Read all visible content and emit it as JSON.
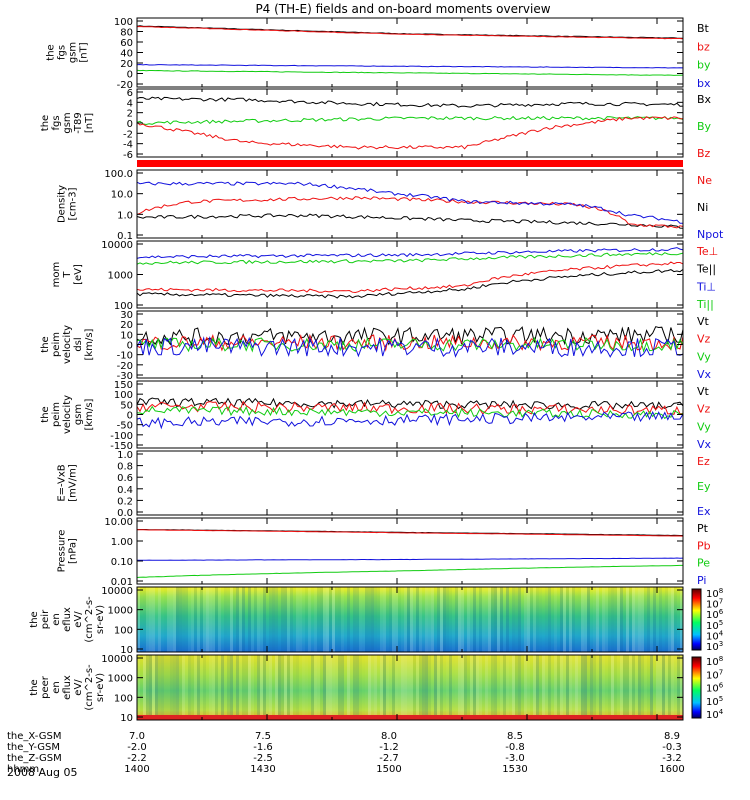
{
  "title": "P4 (TH-E) fields and on-board moments overview",
  "date_label": "2008 Aug 05",
  "x_axis": {
    "row_labels": [
      "the_X-GSM",
      "the_Y-GSM",
      "the_Z-GSM",
      "hhmm"
    ],
    "positions": [
      "7.0",
      "7.5",
      "8.0",
      "8.5",
      "8.9"
    ],
    "rows": [
      [
        "7.0",
        "7.5",
        "8.0",
        "8.5",
        "8.9"
      ],
      [
        "-2.0",
        "-1.6",
        "-1.2",
        "-0.8",
        "-0.3"
      ],
      [
        "-2.2",
        "-2.5",
        "-2.7",
        "-3.0",
        "-3.2"
      ],
      [
        "1400",
        "1430",
        "1500",
        "1530",
        "1600"
      ]
    ]
  },
  "colors": {
    "black": "#000000",
    "red": "#ee1111",
    "green": "#11cc11",
    "blue": "#1111dd"
  },
  "chart_data": [
    {
      "type": "line",
      "ylabel": [
        "the",
        "fgs",
        "gsm",
        "[nT]"
      ],
      "yticks": [
        "100",
        "80",
        "60",
        "40",
        "20",
        "0",
        "-20"
      ],
      "ylim": [
        -30,
        100
      ],
      "legend": [
        [
          "Bt",
          "#000000"
        ],
        [
          "bz",
          "#ee1111"
        ],
        [
          "by",
          "#11cc11"
        ],
        [
          "bx",
          "#1111dd"
        ]
      ],
      "series": [
        {
          "name": "Bt",
          "x": [
            0,
            0.5,
            1
          ],
          "values": [
            85,
            70,
            62
          ]
        },
        {
          "name": "bz",
          "x": [
            0,
            0.5,
            1
          ],
          "values": [
            84,
            69,
            61
          ]
        },
        {
          "name": "by",
          "x": [
            0,
            1
          ],
          "values": [
            1,
            -8
          ]
        },
        {
          "name": "bx",
          "x": [
            0,
            1
          ],
          "values": [
            12,
            6
          ]
        }
      ]
    },
    {
      "type": "line",
      "ylabel": [
        "the",
        "fgs",
        "gsm",
        "-T89",
        "[nT]"
      ],
      "yticks": [
        "6",
        "4",
        "2",
        "0",
        "-2",
        "-4",
        "-6"
      ],
      "ylim": [
        -8,
        6
      ],
      "legend": [
        [
          "Bx",
          "#000000"
        ],
        [
          "By",
          "#11cc11"
        ],
        [
          "Bz",
          "#ee1111"
        ]
      ],
      "series": [
        {
          "name": "Bx",
          "x": [
            0,
            0.2,
            0.4,
            0.6,
            0.8,
            1
          ],
          "values": [
            4,
            3.8,
            3,
            2.5,
            3,
            2.8
          ]
        },
        {
          "name": "By",
          "x": [
            0,
            0.5,
            1
          ],
          "values": [
            -1,
            0,
            0
          ]
        },
        {
          "name": "Bz",
          "x": [
            0,
            0.2,
            0.4,
            0.6,
            0.75,
            0.9,
            1
          ],
          "values": [
            -1,
            -5,
            -6,
            -6,
            -2,
            0,
            0
          ]
        }
      ]
    },
    {
      "type": "line",
      "ylabel": [
        "Density",
        "[cm-3]"
      ],
      "yticks": [
        "100.0",
        "10.0",
        "1.0",
        "0.1"
      ],
      "ylim": [
        0.1,
        100
      ],
      "log": true,
      "legend": [
        [
          "Ne",
          "#ee1111"
        ],
        [
          "Ni",
          "#000000"
        ],
        [
          "Npot",
          "#1111dd"
        ]
      ],
      "series": [
        {
          "name": "Ni",
          "x": [
            0,
            0.3,
            0.6,
            0.9,
            1
          ],
          "values": [
            0.8,
            1.0,
            0.6,
            0.4,
            0.3
          ]
        },
        {
          "name": "Ne",
          "x": [
            0,
            0.1,
            0.4,
            0.6,
            0.8,
            0.9,
            1
          ],
          "values": [
            1.2,
            4,
            6,
            4,
            3,
            0.4,
            0.3
          ]
        },
        {
          "name": "Npot",
          "x": [
            0,
            0.3,
            0.45,
            0.6,
            0.8,
            0.9,
            1
          ],
          "values": [
            25,
            25,
            10,
            4,
            3,
            1,
            0.5
          ]
        }
      ]
    },
    {
      "type": "line",
      "ylabel": [
        "mom",
        "T",
        "[eV]"
      ],
      "yticks": [
        "10000",
        "1000",
        "100"
      ],
      "ylim": [
        30,
        10000
      ],
      "log": true,
      "legend": [
        [
          "Te⊥",
          "#ee1111"
        ],
        [
          "Te||",
          "#000000"
        ],
        [
          "Ti⊥",
          "#1111dd"
        ],
        [
          "Ti||",
          "#11cc11"
        ]
      ],
      "series": [
        {
          "name": "Ti⊥",
          "x": [
            0,
            0.5,
            1
          ],
          "values": [
            2500,
            3000,
            5000
          ]
        },
        {
          "name": "Ti||",
          "x": [
            0,
            0.5,
            1
          ],
          "values": [
            1500,
            1800,
            3500
          ]
        },
        {
          "name": "Te⊥",
          "x": [
            0,
            0.4,
            0.6,
            1
          ],
          "values": [
            150,
            130,
            200,
            1500
          ]
        },
        {
          "name": "Te||",
          "x": [
            0,
            0.4,
            0.6,
            1
          ],
          "values": [
            100,
            80,
            150,
            800
          ]
        }
      ]
    },
    {
      "type": "line",
      "ylabel": [
        "the",
        "peim",
        "velocity",
        "dsl",
        "[km/s]"
      ],
      "yticks": [
        "30",
        "20",
        "10",
        "0",
        "-10",
        "-20",
        "-30"
      ],
      "ylim": [
        -35,
        35
      ],
      "legend": [
        [
          "Vt",
          "#000000"
        ],
        [
          "Vz",
          "#ee1111"
        ],
        [
          "Vy",
          "#11cc11"
        ],
        [
          "Vx",
          "#1111dd"
        ]
      ],
      "series": [
        {
          "name": "Vt",
          "x": [
            0,
            1
          ],
          "values": [
            8,
            10
          ]
        },
        {
          "name": "Vz",
          "x": [
            0,
            1
          ],
          "values": [
            2,
            2
          ]
        },
        {
          "name": "Vy",
          "x": [
            0,
            1
          ],
          "values": [
            0,
            0
          ]
        },
        {
          "name": "Vx",
          "x": [
            0,
            1
          ],
          "values": [
            -2,
            -3
          ]
        }
      ]
    },
    {
      "type": "line",
      "ylabel": [
        "the",
        "peim",
        "velocity",
        "gsm",
        "[km/s]"
      ],
      "yticks": [
        "150",
        "100",
        "50",
        "0",
        "-50",
        "-100",
        "-150"
      ],
      "ylim": [
        -160,
        160
      ],
      "legend": [
        [
          "Vt",
          "#000000"
        ],
        [
          "Vz",
          "#ee1111"
        ],
        [
          "Vy",
          "#11cc11"
        ],
        [
          "Vx",
          "#1111dd"
        ]
      ],
      "series": [
        {
          "name": "Vt",
          "x": [
            0,
            0.5,
            1
          ],
          "values": [
            60,
            50,
            40
          ]
        },
        {
          "name": "Vz",
          "x": [
            0,
            0.5,
            1
          ],
          "values": [
            40,
            30,
            20
          ]
        },
        {
          "name": "Vy",
          "x": [
            0,
            0.5,
            1
          ],
          "values": [
            20,
            10,
            0
          ]
        },
        {
          "name": "Vx",
          "x": [
            0,
            0.5,
            1
          ],
          "values": [
            -40,
            -25,
            -10
          ]
        }
      ]
    },
    {
      "type": "line",
      "ylabel": [
        "E=-VxB",
        "[mV/m]"
      ],
      "yticks": [
        "1.0",
        "0.8",
        "0.6",
        "0.4",
        "0.2",
        "0.0"
      ],
      "ylim": [
        0,
        1
      ],
      "legend": [
        [
          "Ez",
          "#ee1111"
        ],
        [
          "Ey",
          "#11cc11"
        ],
        [
          "Ex",
          "#1111dd"
        ]
      ],
      "series": []
    },
    {
      "type": "line",
      "ylabel": [
        "Pressure",
        "[nPa]"
      ],
      "yticks": [
        "10.00",
        "1.00",
        "0.10",
        "0.01"
      ],
      "ylim": [
        0.01,
        10
      ],
      "log": true,
      "legend": [
        [
          "Pt",
          "#000000"
        ],
        [
          "Pb",
          "#ee1111"
        ],
        [
          "Pe",
          "#11cc11"
        ],
        [
          "Pi",
          "#1111dd"
        ]
      ],
      "series": [
        {
          "name": "Pt",
          "x": [
            0,
            0.5,
            1
          ],
          "values": [
            3.0,
            2.2,
            1.6
          ]
        },
        {
          "name": "Pb",
          "x": [
            0,
            0.5,
            1
          ],
          "values": [
            2.9,
            2.1,
            1.5
          ]
        },
        {
          "name": "Pi",
          "x": [
            0,
            0.5,
            1
          ],
          "values": [
            0.12,
            0.13,
            0.15
          ]
        },
        {
          "name": "Pe",
          "x": [
            0,
            0.5,
            1
          ],
          "values": [
            0.02,
            0.04,
            0.07
          ]
        }
      ]
    },
    {
      "type": "heatmap",
      "ylabel": [
        "the",
        "peir",
        "en",
        "eflux",
        "eV/",
        "(cm^2-s-",
        "sr-eV)"
      ],
      "yticks": [
        "10000",
        "1000",
        "100",
        "10"
      ],
      "cbar_ticks": [
        "10^8",
        "10^7",
        "10^6",
        "10^5",
        "10^4",
        "10^3"
      ]
    },
    {
      "type": "heatmap",
      "ylabel": [
        "the",
        "peer",
        "en",
        "eflux",
        "eV/",
        "(cm^2-s-",
        "sr-eV)"
      ],
      "yticks": [
        "10000",
        "1000",
        "100",
        "10"
      ],
      "cbar_ticks": [
        "10^8",
        "10^7",
        "10^6",
        "10^5",
        "10^4"
      ]
    }
  ]
}
